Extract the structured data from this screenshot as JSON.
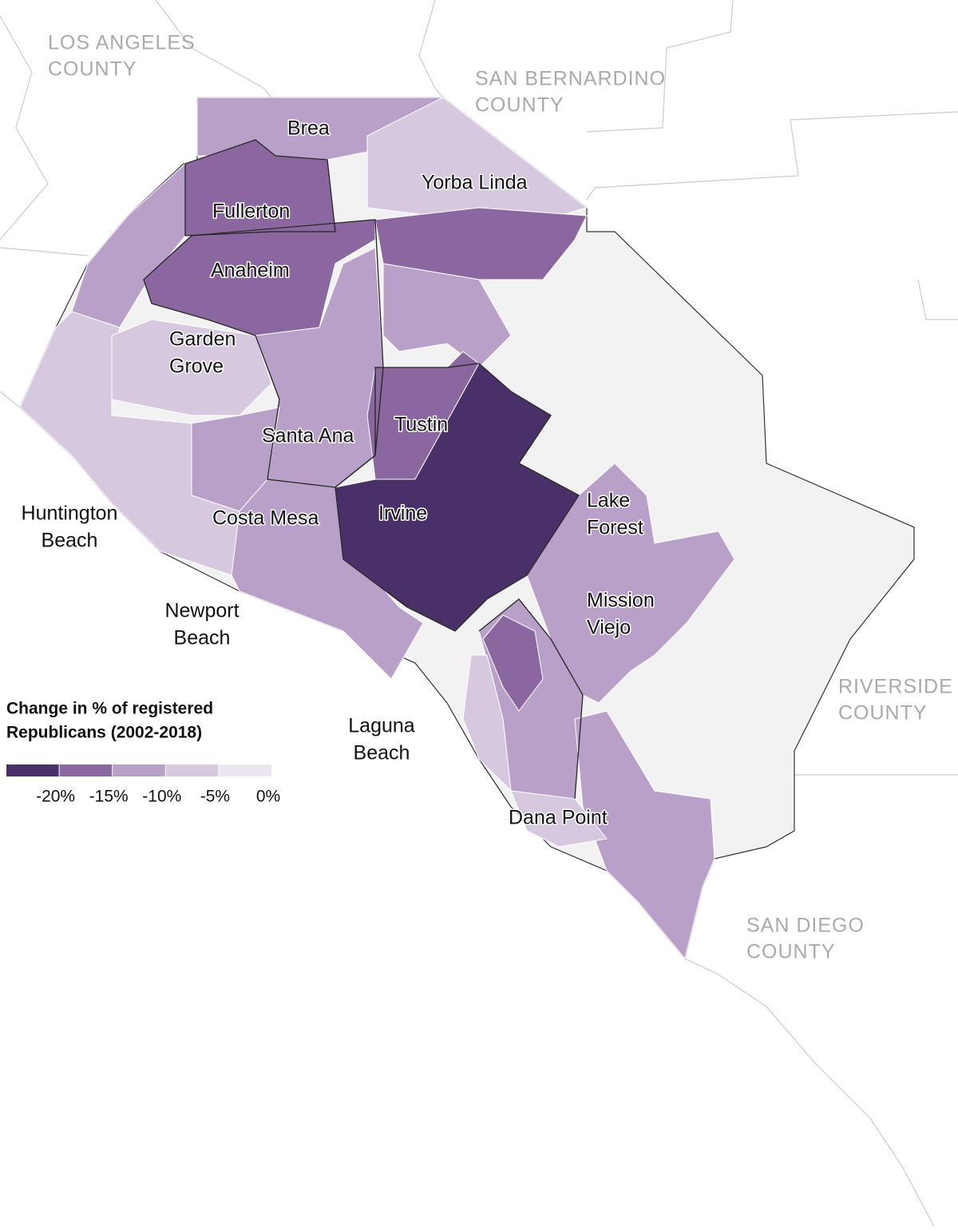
{
  "map": {
    "counties": [
      {
        "lines": [
          "LOS ANGELES",
          "COUNTY"
        ]
      },
      {
        "lines": [
          "SAN BERNARDINO",
          "COUNTY"
        ]
      },
      {
        "lines": [
          "RIVERSIDE",
          "COUNTY"
        ]
      },
      {
        "lines": [
          "SAN DIEGO",
          "COUNTY"
        ]
      }
    ],
    "cities": [
      {
        "lines": [
          "Brea"
        ]
      },
      {
        "lines": [
          "Yorba Linda"
        ]
      },
      {
        "lines": [
          "Fullerton"
        ]
      },
      {
        "lines": [
          "Anaheim"
        ]
      },
      {
        "lines": [
          "Garden",
          "Grove"
        ]
      },
      {
        "lines": [
          "Santa Ana"
        ]
      },
      {
        "lines": [
          "Tustin"
        ]
      },
      {
        "lines": [
          "Irvine"
        ]
      },
      {
        "lines": [
          "Huntington",
          "Beach"
        ]
      },
      {
        "lines": [
          "Costa Mesa"
        ]
      },
      {
        "lines": [
          "Lake",
          "Forest"
        ]
      },
      {
        "lines": [
          "Mission",
          "Viejo"
        ]
      },
      {
        "lines": [
          "Newport",
          "Beach"
        ]
      },
      {
        "lines": [
          "Laguna",
          "Beach"
        ]
      },
      {
        "lines": [
          "Dana Point"
        ]
      }
    ]
  },
  "legend": {
    "title_lines": [
      "Change in % of registered",
      "Republicans (2002-2018)"
    ],
    "colors": [
      "#4a3068",
      "#8b679f",
      "#b9a0c8",
      "#d6c8de",
      "#ece6f0"
    ],
    "ticks": [
      "-20%",
      "-15%",
      "-10%",
      "-5%",
      "0%"
    ]
  }
}
